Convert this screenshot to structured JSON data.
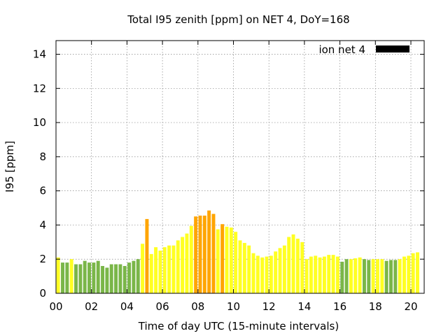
{
  "chart_data": {
    "type": "bar",
    "title": "Total I95 zenith [ppm] on NET 4, DoY=168",
    "xlabel": "Time of day UTC (15-minute intervals)",
    "ylabel": "I95 [ppm]",
    "xlim": [
      0,
      20.75
    ],
    "ylim": [
      0,
      14.8
    ],
    "x_ticks": [
      "00",
      "02",
      "04",
      "06",
      "08",
      "10",
      "12",
      "14",
      "16",
      "18",
      "20"
    ],
    "y_ticks": [
      "0",
      "2",
      "4",
      "6",
      "8",
      "10",
      "12",
      "14"
    ],
    "grid": true,
    "legend": {
      "label": "ion net 4",
      "color": "#000000",
      "position": "top-right"
    },
    "bin_hours": 0.25,
    "colors": {
      "G": "#7ab648",
      "Y": "#ffff22",
      "O": "#ffa500"
    },
    "values": [
      2.1,
      1.8,
      1.8,
      2.0,
      1.7,
      1.7,
      1.9,
      1.8,
      1.8,
      1.9,
      1.6,
      1.5,
      1.7,
      1.7,
      1.7,
      1.6,
      1.8,
      1.9,
      2.0,
      2.9,
      4.35,
      2.3,
      2.7,
      2.5,
      2.7,
      2.8,
      2.8,
      3.1,
      3.3,
      3.5,
      3.95,
      4.5,
      4.55,
      4.55,
      4.85,
      4.65,
      3.75,
      4.05,
      3.9,
      3.85,
      3.6,
      3.1,
      2.95,
      2.8,
      2.35,
      2.2,
      2.1,
      2.15,
      2.2,
      2.45,
      2.65,
      2.8,
      3.3,
      3.45,
      3.2,
      3.0,
      2.0,
      2.15,
      2.2,
      2.1,
      2.15,
      2.25,
      2.25,
      2.15,
      1.85,
      2.0,
      2.0,
      2.05,
      2.1,
      2.0,
      1.95,
      2.0,
      2.0,
      2.0,
      1.9,
      1.95,
      1.95,
      2.0,
      2.15,
      2.2,
      2.35,
      2.4
    ],
    "bar_colors": [
      "Y",
      "G",
      "G",
      "Y",
      "G",
      "G",
      "G",
      "G",
      "G",
      "G",
      "G",
      "G",
      "G",
      "G",
      "G",
      "G",
      "G",
      "G",
      "G",
      "Y",
      "O",
      "Y",
      "Y",
      "Y",
      "Y",
      "Y",
      "Y",
      "Y",
      "Y",
      "Y",
      "Y",
      "O",
      "O",
      "O",
      "O",
      "O",
      "Y",
      "O",
      "Y",
      "Y",
      "Y",
      "Y",
      "Y",
      "Y",
      "Y",
      "Y",
      "Y",
      "Y",
      "Y",
      "Y",
      "Y",
      "Y",
      "Y",
      "Y",
      "Y",
      "Y",
      "Y",
      "Y",
      "Y",
      "Y",
      "Y",
      "Y",
      "Y",
      "Y",
      "G",
      "G",
      "Y",
      "Y",
      "Y",
      "G",
      "G",
      "Y",
      "Y",
      "Y",
      "G",
      "G",
      "G",
      "Y",
      "Y",
      "Y",
      "Y",
      "Y"
    ]
  }
}
